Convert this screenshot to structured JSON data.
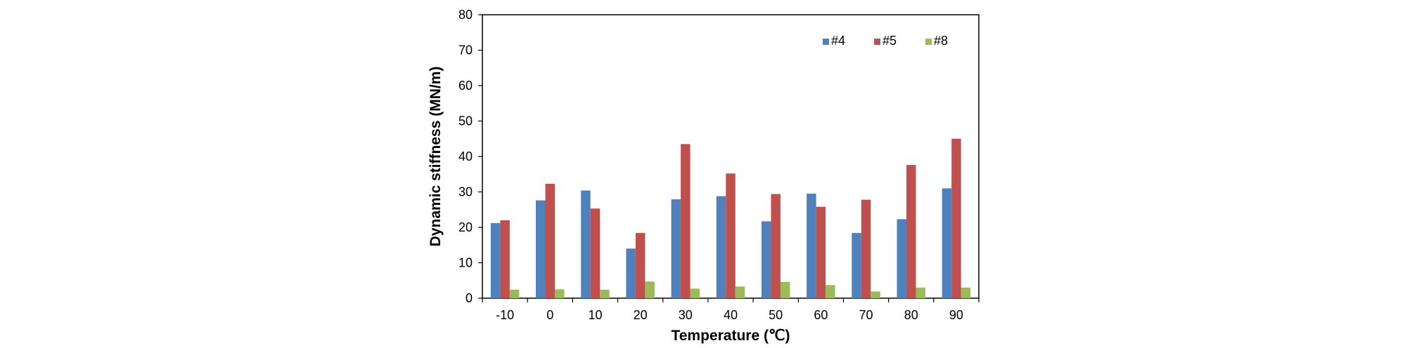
{
  "chart_data": {
    "type": "bar",
    "title": "",
    "xlabel": "Temperature (℃)",
    "ylabel": "Dynamic stiffness (MN/m)",
    "categories": [
      "-10",
      "0",
      "10",
      "20",
      "30",
      "40",
      "50",
      "60",
      "70",
      "80",
      "90"
    ],
    "ylim": [
      0,
      80
    ],
    "yticks": [
      "0",
      "10",
      "20",
      "30",
      "40",
      "50",
      "60",
      "70",
      "80"
    ],
    "grid": false,
    "legend_position": "top-right",
    "series": [
      {
        "name": "#4",
        "color": "#4F81BD",
        "values": [
          21.2,
          27.6,
          30.4,
          14.0,
          27.9,
          28.8,
          21.7,
          29.5,
          18.4,
          22.3,
          31.0
        ]
      },
      {
        "name": "#5",
        "color": "#C0504D",
        "values": [
          22.0,
          32.3,
          25.3,
          18.4,
          43.5,
          35.2,
          29.4,
          25.8,
          27.8,
          37.6,
          45.0
        ]
      },
      {
        "name": "#8",
        "color": "#9BBB59",
        "values": [
          2.4,
          2.5,
          2.4,
          4.7,
          2.7,
          3.3,
          4.6,
          3.7,
          1.9,
          3.0,
          3.0
        ]
      }
    ]
  }
}
